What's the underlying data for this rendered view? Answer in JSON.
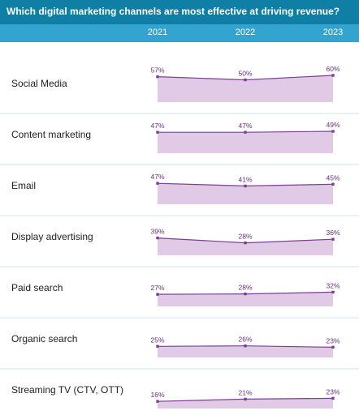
{
  "title": "Which digital marketing channels are most effective at driving revenue?",
  "colors": {
    "title_bg": "#0f7fa6",
    "years_bg": "#33a4cf",
    "area_fill": "#e0cae6",
    "line": "#7b3f91",
    "separator": "#cfe4ee"
  },
  "chart_data": {
    "type": "area",
    "x": [
      "2021",
      "2022",
      "2023"
    ],
    "value_suffix": "%",
    "series": [
      {
        "name": "Social Media",
        "values": [
          57,
          50,
          60
        ]
      },
      {
        "name": "Content marketing",
        "values": [
          47,
          47,
          49
        ]
      },
      {
        "name": "Email",
        "values": [
          47,
          41,
          45
        ]
      },
      {
        "name": "Display advertising",
        "values": [
          39,
          28,
          36
        ]
      },
      {
        "name": "Paid search",
        "values": [
          27,
          28,
          32
        ]
      },
      {
        "name": "Organic search",
        "values": [
          25,
          26,
          23
        ]
      },
      {
        "name": "Streaming TV (CTV, OTT)",
        "values": [
          16,
          21,
          23
        ]
      }
    ]
  }
}
